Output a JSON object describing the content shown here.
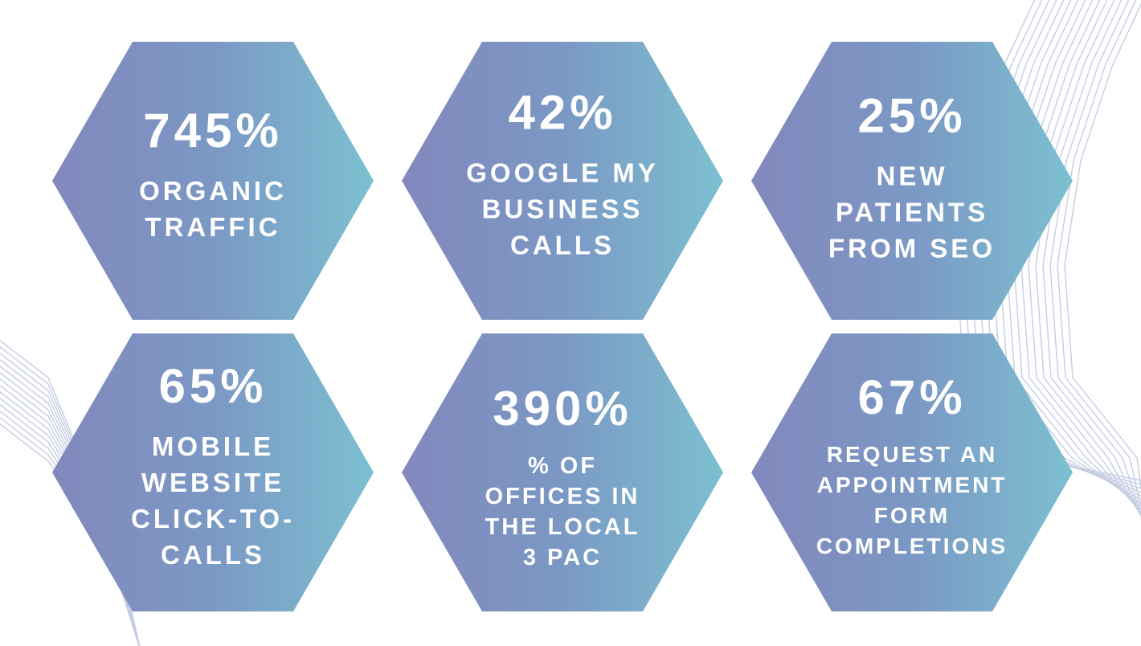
{
  "colors": {
    "hex_gradient_start": "#8288bd",
    "hex_gradient_mid": "#7b98c4",
    "hex_gradient_end": "#7cc0d0",
    "text": "#ffffff",
    "deco_lines": "#c5cde3"
  },
  "stats": [
    {
      "value": "745%",
      "label": "ORGANIC\nTRAFFIC"
    },
    {
      "value": "42%",
      "label": "GOOGLE MY\nBUSINESS\nCALLS"
    },
    {
      "value": "25%",
      "label": "NEW\nPATIENTS\nFROM SEO"
    },
    {
      "value": "65%",
      "label": "MOBILE\nWEBSITE\nCLICK-TO-\nCALLS"
    },
    {
      "value": "390%",
      "label": "% OF\nOFFICES IN\nTHE LOCAL\n3 PAC"
    },
    {
      "value": "67%",
      "label": "REQUEST AN\nAPPOINTMENT\nFORM\nCOMPLETIONS"
    }
  ]
}
